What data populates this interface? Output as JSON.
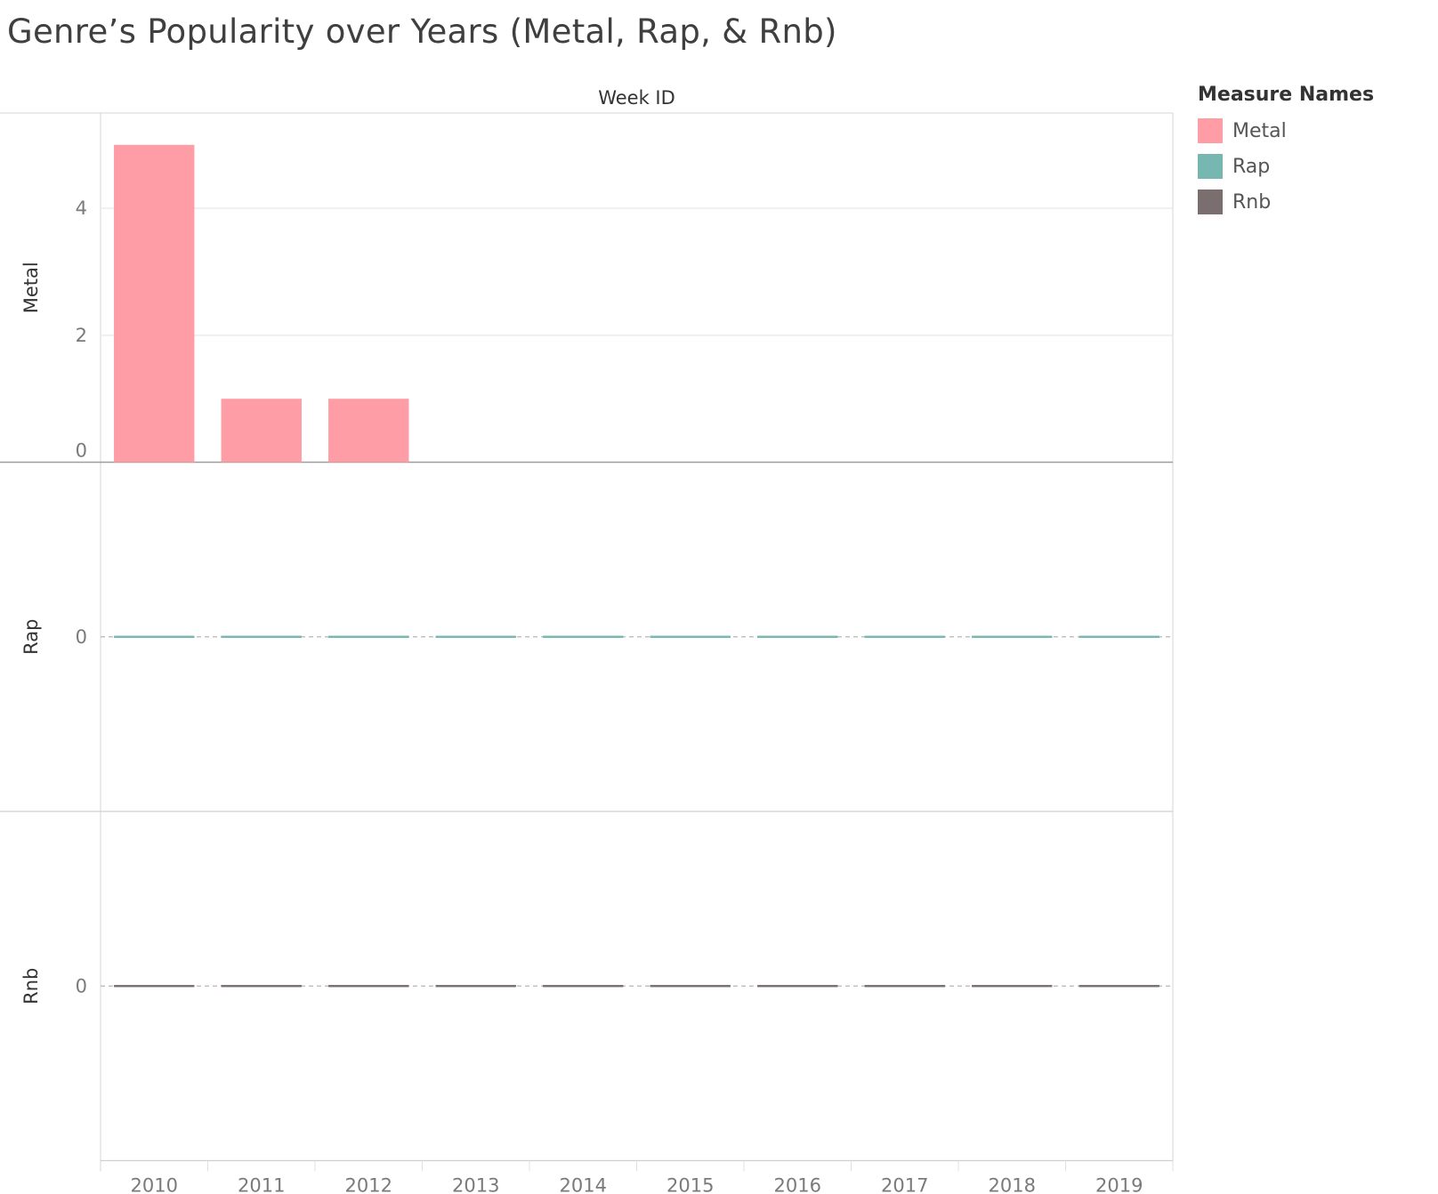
{
  "chart_data": {
    "type": "bar",
    "title": "Genre’s Popularity over Years (Metal, Rap, & Rnb)",
    "xlabel": "Week ID",
    "categories": [
      "2010",
      "2011",
      "2012",
      "2013",
      "2014",
      "2015",
      "2016",
      "2017",
      "2018",
      "2019"
    ],
    "series": [
      {
        "name": "Metal",
        "color": "#ff9da7",
        "values": [
          5,
          1,
          1,
          null,
          null,
          null,
          null,
          null,
          null,
          null
        ],
        "yticks": [
          "0",
          "2",
          "4"
        ],
        "ylim": [
          0,
          5.25
        ]
      },
      {
        "name": "Rap",
        "color": "#76b7b2",
        "values": [
          0,
          0,
          0,
          0,
          0,
          0,
          0,
          0,
          0,
          0
        ],
        "yticks": [
          "0"
        ],
        "ylim": [
          -1,
          1
        ]
      },
      {
        "name": "Rnb",
        "color": "#7a6f6e",
        "values": [
          0,
          0,
          0,
          0,
          0,
          0,
          0,
          0,
          0,
          0
        ],
        "yticks": [
          "0"
        ],
        "ylim": [
          -1,
          1
        ]
      }
    ],
    "legend": {
      "title": "Measure Names",
      "position": "top-right"
    },
    "grid": true
  }
}
